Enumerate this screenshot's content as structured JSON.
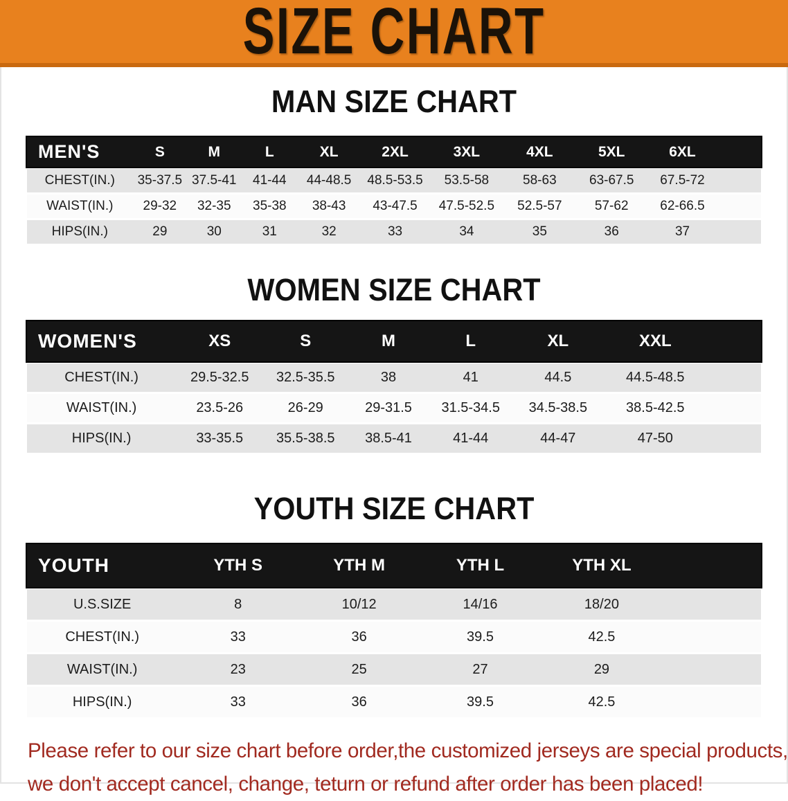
{
  "banner": {
    "title": "SIZE CHART",
    "bg_color": "#E8811E"
  },
  "colors": {
    "header_band": "#151515",
    "shade_row": "#E4E4E4",
    "note_red": "#A12A20"
  },
  "sections": [
    {
      "heading": "MAN SIZE CHART",
      "table": {
        "header_label": "MEN'S",
        "columns": [
          "S",
          "M",
          "L",
          "XL",
          "2XL",
          "3XL",
          "4XL",
          "5XL",
          "6XL"
        ],
        "rows": [
          {
            "label": "CHEST(IN.)",
            "values": [
              "35-37.5",
              "37.5-41",
              "41-44",
              "44-48.5",
              "48.5-53.5",
              "53.5-58",
              "58-63",
              "63-67.5",
              "67.5-72"
            ]
          },
          {
            "label": "WAIST(IN.)",
            "values": [
              "29-32",
              "32-35",
              "35-38",
              "38-43",
              "43-47.5",
              "47.5-52.5",
              "52.5-57",
              "57-62",
              "62-66.5"
            ]
          },
          {
            "label": "HIPS(IN.)",
            "values": [
              "29",
              "30",
              "31",
              "32",
              "33",
              "34",
              "35",
              "36",
              "37"
            ]
          }
        ]
      }
    },
    {
      "heading": "WOMEN SIZE CHART",
      "table": {
        "header_label": "WOMEN'S",
        "columns": [
          "XS",
          "S",
          "M",
          "L",
          "XL",
          "XXL"
        ],
        "rows": [
          {
            "label": "CHEST(IN.)",
            "values": [
              "29.5-32.5",
              "32.5-35.5",
              "38",
              "41",
              "44.5",
              "44.5-48.5"
            ]
          },
          {
            "label": "WAIST(IN.)",
            "values": [
              "23.5-26",
              "26-29",
              "29-31.5",
              "31.5-34.5",
              "34.5-38.5",
              "38.5-42.5"
            ]
          },
          {
            "label": "HIPS(IN.)",
            "values": [
              "33-35.5",
              "35.5-38.5",
              "38.5-41",
              "41-44",
              "44-47",
              "47-50"
            ]
          }
        ]
      }
    },
    {
      "heading": "YOUTH SIZE CHART",
      "table": {
        "header_label": "YOUTH",
        "columns": [
          "YTH S",
          "YTH M",
          "YTH L",
          "YTH XL"
        ],
        "rows": [
          {
            "label": "U.S.SIZE",
            "values": [
              "8",
              "10/12",
              "14/16",
              "18/20"
            ]
          },
          {
            "label": "CHEST(IN.)",
            "values": [
              "33",
              "36",
              "39.5",
              "42.5"
            ]
          },
          {
            "label": "WAIST(IN.)",
            "values": [
              "23",
              "25",
              "27",
              "29"
            ]
          },
          {
            "label": "HIPS(IN.)",
            "values": [
              "33",
              "36",
              "39.5",
              "42.5"
            ]
          }
        ]
      }
    }
  ],
  "footer": {
    "line1": "Please refer to our size chart before order,the customized jerseys are special products,",
    "line2": "we don't accept cancel, change, teturn or refund after order has been placed!"
  }
}
